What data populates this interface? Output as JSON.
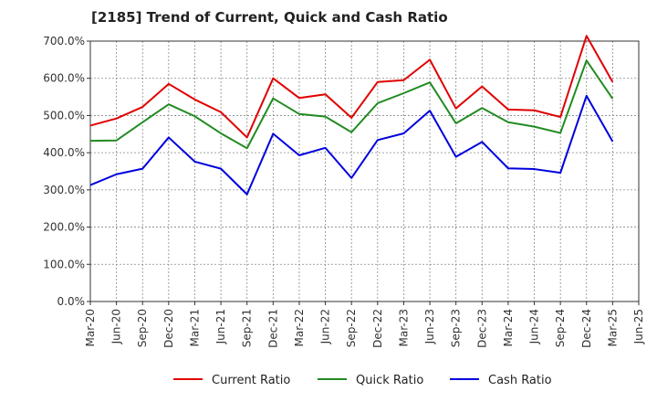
{
  "chart_data": {
    "type": "line",
    "title": "[2185]  Trend of Current, Quick and Cash Ratio",
    "xlabel": "",
    "ylabel": "",
    "ylim": [
      0,
      700
    ],
    "yticks": [
      0,
      100,
      200,
      300,
      400,
      500,
      600,
      700
    ],
    "ytick_labels": [
      "0.0%",
      "100.0%",
      "200.0%",
      "300.0%",
      "400.0%",
      "500.0%",
      "600.0%",
      "700.0%"
    ],
    "xticks": [
      "Mar-20",
      "Jun-20",
      "Sep-20",
      "Dec-20",
      "Mar-21",
      "Jun-21",
      "Sep-21",
      "Dec-21",
      "Mar-22",
      "Jun-22",
      "Sep-22",
      "Dec-22",
      "Mar-23",
      "Jun-23",
      "Sep-23",
      "Dec-23",
      "Mar-24",
      "Jun-24",
      "Sep-24",
      "Dec-24",
      "Mar-25",
      "Jun-25"
    ],
    "grid": true,
    "legend_position": "bottom",
    "x": [
      "Mar-20",
      "Jun-20",
      "Sep-20",
      "Dec-20",
      "Mar-21",
      "Jun-21",
      "Sep-21",
      "Dec-21",
      "Mar-22",
      "Jun-22",
      "Sep-22",
      "Dec-22",
      "Mar-23",
      "Jun-23",
      "Sep-23",
      "Dec-23",
      "Mar-24",
      "Jun-24",
      "Sep-24",
      "Dec-24",
      "Mar-25"
    ],
    "series": [
      {
        "name": "Current Ratio",
        "color": "#e00000",
        "values": [
          473,
          492,
          523,
          585,
          543,
          509,
          441,
          600,
          547,
          557,
          494,
          590,
          595,
          650,
          519,
          578,
          516,
          514,
          496,
          714,
          590
        ]
      },
      {
        "name": "Quick Ratio",
        "color": "#228b22",
        "values": [
          432,
          433,
          482,
          530,
          498,
          452,
          412,
          546,
          504,
          497,
          455,
          533,
          560,
          589,
          479,
          520,
          482,
          470,
          453,
          648,
          545
        ]
      },
      {
        "name": "Cash Ratio",
        "color": "#0000dd",
        "values": [
          313,
          342,
          357,
          441,
          376,
          357,
          288,
          451,
          393,
          413,
          332,
          434,
          452,
          513,
          389,
          429,
          358,
          356,
          346,
          553,
          430
        ]
      }
    ]
  }
}
